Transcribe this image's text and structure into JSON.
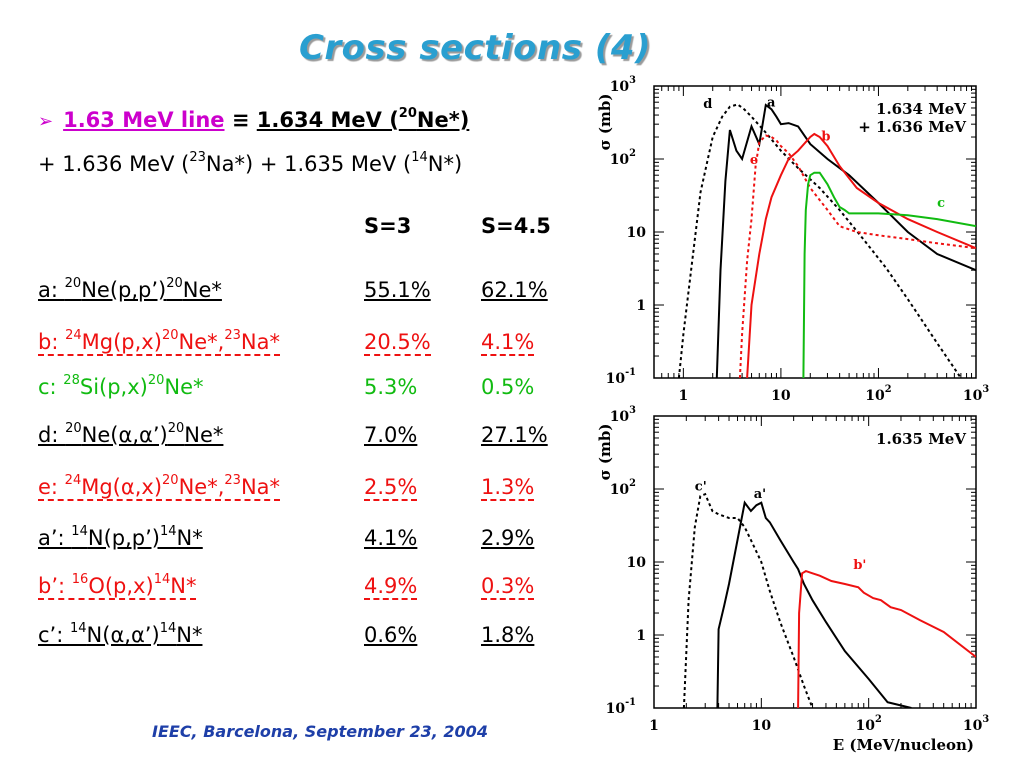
{
  "title": "Cross sections (4)",
  "footer": "IEEC, Barcelona, September 23, 2004",
  "header_line": {
    "bullet_icon": "arrow-bullet-icon",
    "line_label": "1.63 MeV line",
    "equiv": "≡",
    "main": "1.634 MeV (",
    "main_sup": "20",
    "main_tail": "Ne*)"
  },
  "second_line": {
    "p1": "+ 1.636 MeV (",
    "p1_sup": "23",
    "p2": "Na*) + 1.635 MeV (",
    "p2_sup": "14",
    "p3": "N*)"
  },
  "table": {
    "col_s3": "S=3",
    "col_s45": "S=4.5",
    "rows": [
      {
        "pre": "a: ",
        "parts": [
          [
            "20",
            "Ne(p,p’)"
          ],
          [
            "20",
            "Ne*"
          ]
        ],
        "s3": "55.1%",
        "s45": "62.1%",
        "color": "#000000"
      },
      {
        "pre": "b: ",
        "parts": [
          [
            "24",
            "Mg(p,x)"
          ],
          [
            "20",
            "Ne*,"
          ],
          [
            "23",
            "Na*"
          ]
        ],
        "s3": "20.5%",
        "s45": "4.1%",
        "color": "#ee1111"
      },
      {
        "pre": "c: ",
        "parts": [
          [
            "28",
            "Si(p,x)"
          ],
          [
            "20",
            "Ne*"
          ]
        ],
        "s3": "5.3%",
        "s45": "0.5%",
        "color": "#11bb11"
      },
      {
        "pre": "d: ",
        "parts": [
          [
            "20",
            "Ne(α,α’)"
          ],
          [
            "20",
            "Ne*"
          ]
        ],
        "s3": "7.0%",
        "s45": "27.1%",
        "color": "#000000"
      },
      {
        "pre": "e: ",
        "parts": [
          [
            "24",
            "Mg(α,x)"
          ],
          [
            "20",
            "Ne*,"
          ],
          [
            "23",
            "Na*"
          ]
        ],
        "s3": "2.5%",
        "s45": "1.3%",
        "color": "#ee1111"
      },
      {
        "pre": "a’: ",
        "parts": [
          [
            "14",
            "N(p,p’)"
          ],
          [
            "14",
            "N*"
          ]
        ],
        "s3": "4.1%",
        "s45": "2.9%",
        "color": "#000000"
      },
      {
        "pre": "b’: ",
        "parts": [
          [
            "16",
            "O(p,x)"
          ],
          [
            "14",
            "N*"
          ]
        ],
        "s3": "4.9%",
        "s45": "0.3%",
        "color": "#ee1111"
      },
      {
        "pre": "c’: ",
        "parts": [
          [
            "14",
            "N(α,α’)"
          ],
          [
            "14",
            "N*"
          ]
        ],
        "s3": "0.6%",
        "s45": "1.8%",
        "color": "#000000"
      }
    ]
  },
  "chart_data": [
    {
      "type": "line",
      "label": "1.634 MeV\n+ 1.636 MeV",
      "xscale": "log",
      "yscale": "log",
      "xlim": [
        0.5,
        1000
      ],
      "ylim": [
        0.1,
        1000
      ],
      "ylabel": "σ (mb)",
      "x_ticks": [
        "1",
        "10",
        "10²",
        "10³"
      ],
      "y_ticks": [
        "10⁻¹",
        "1",
        "10",
        "10²",
        "10³"
      ],
      "series": [
        {
          "name": "d",
          "color": "#000000",
          "dash": true,
          "x": [
            0.9,
            1,
            1.2,
            1.5,
            2,
            2.5,
            3,
            3.6,
            4.2,
            5,
            7,
            10,
            15,
            25,
            40,
            70,
            120,
            200,
            400,
            700
          ],
          "y": [
            0.1,
            0.4,
            3,
            35,
            200,
            380,
            520,
            560,
            480,
            380,
            230,
            130,
            75,
            40,
            20,
            8,
            3.2,
            1.2,
            0.3,
            0.1
          ]
        },
        {
          "name": "a",
          "color": "#000000",
          "dash": false,
          "x": [
            2.2,
            2.4,
            2.7,
            3,
            3.5,
            4,
            5,
            6,
            7,
            8,
            9,
            10,
            12,
            15,
            20,
            30,
            50,
            100,
            200,
            400,
            1000
          ],
          "y": [
            0.1,
            3,
            50,
            250,
            130,
            100,
            280,
            160,
            550,
            480,
            380,
            300,
            310,
            280,
            160,
            100,
            60,
            25,
            10,
            5,
            3
          ]
        },
        {
          "name": "e",
          "color": "#ee1111",
          "dash": true,
          "x": [
            3.8,
            4,
            4.5,
            5,
            5.5,
            6,
            7,
            8,
            9,
            10,
            12,
            15,
            20,
            30,
            40,
            60,
            100,
            200,
            400,
            1000
          ],
          "y": [
            0.1,
            0.4,
            4,
            15,
            80,
            170,
            210,
            200,
            180,
            150,
            120,
            80,
            40,
            20,
            12,
            10,
            9,
            8,
            7,
            6
          ]
        },
        {
          "name": "b",
          "color": "#ee1111",
          "dash": false,
          "x": [
            4.5,
            5,
            6,
            7,
            8,
            10,
            12,
            15,
            20,
            22,
            25,
            30,
            40,
            60,
            100,
            200,
            400,
            1000
          ],
          "y": [
            0.1,
            1,
            5,
            15,
            30,
            60,
            100,
            130,
            200,
            220,
            200,
            150,
            80,
            40,
            25,
            15,
            10,
            6
          ]
        },
        {
          "name": "c",
          "color": "#11bb11",
          "dash": false,
          "x": [
            17,
            17.5,
            18,
            19,
            20,
            22,
            25,
            30,
            35,
            40,
            45,
            50,
            70,
            100,
            200,
            400,
            1000
          ],
          "y": [
            0.1,
            5,
            20,
            45,
            60,
            65,
            65,
            45,
            30,
            22,
            20,
            18,
            18,
            18,
            17,
            15,
            12
          ]
        }
      ]
    },
    {
      "type": "line",
      "label": "1.635 MeV",
      "xscale": "log",
      "yscale": "log",
      "xlim": [
        1,
        1000
      ],
      "ylim": [
        0.1,
        1000
      ],
      "ylabel": "σ (mb)",
      "xlabel": "E (MeV/nucleon)",
      "x_ticks": [
        "1",
        "10",
        "10²",
        "10³"
      ],
      "y_ticks": [
        "10⁻¹",
        "1",
        "10",
        "10²",
        "10³"
      ],
      "series": [
        {
          "name": "c'",
          "color": "#000000",
          "dash": true,
          "x": [
            1.9,
            2.1,
            2.4,
            2.7,
            3,
            3.5,
            4,
            5,
            6,
            7,
            8,
            10,
            12,
            15,
            20,
            25,
            30
          ],
          "y": [
            0.1,
            3,
            30,
            80,
            85,
            50,
            45,
            40,
            40,
            30,
            20,
            10,
            4,
            1.5,
            0.5,
            0.2,
            0.1
          ]
        },
        {
          "name": "a'",
          "color": "#000000",
          "dash": false,
          "x": [
            3.9,
            4,
            4.5,
            5,
            6,
            7,
            8,
            9,
            10,
            11,
            12,
            15,
            20,
            22,
            25,
            30,
            40,
            60,
            100,
            150,
            250
          ],
          "y": [
            0.1,
            1.2,
            2.5,
            5,
            20,
            65,
            50,
            60,
            65,
            40,
            35,
            20,
            10,
            8,
            5,
            3,
            1.5,
            0.6,
            0.25,
            0.12,
            0.1
          ]
        },
        {
          "name": "b'",
          "color": "#ee1111",
          "dash": false,
          "x": [
            22,
            22.5,
            24,
            26,
            30,
            35,
            45,
            60,
            80,
            90,
            110,
            130,
            160,
            200,
            300,
            500,
            1000
          ],
          "y": [
            0.1,
            2,
            7,
            7.5,
            7,
            6.5,
            5.5,
            5,
            4.5,
            3.8,
            3.2,
            3,
            2.4,
            2.2,
            1.6,
            1.1,
            0.5
          ]
        }
      ]
    }
  ]
}
